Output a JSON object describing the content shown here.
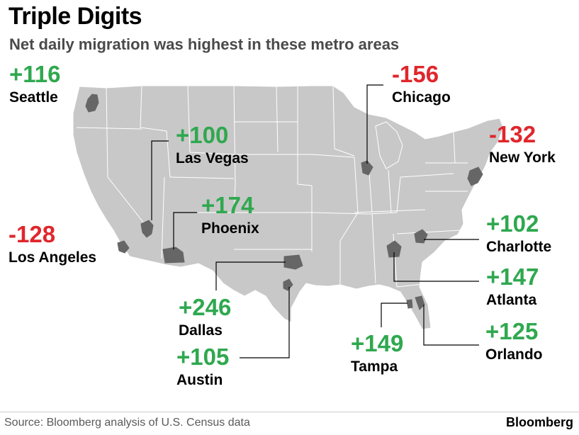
{
  "title": "Triple Digits",
  "subtitle": "Net daily migration was highest in these metro areas",
  "colors": {
    "positive": "#2fa84f",
    "negative": "#e0262c",
    "land": "#c8c8c8",
    "metro": "#666666",
    "border": "#ffffff"
  },
  "metros": [
    {
      "id": "seattle",
      "city": "Seattle",
      "value": "+116",
      "sign": "pos"
    },
    {
      "id": "las-vegas",
      "city": "Las Vegas",
      "value": "+100",
      "sign": "pos"
    },
    {
      "id": "phoenix",
      "city": "Phoenix",
      "value": "+174",
      "sign": "pos"
    },
    {
      "id": "los-angeles",
      "city": "Los Angeles",
      "value": "-128",
      "sign": "neg"
    },
    {
      "id": "chicago",
      "city": "Chicago",
      "value": "-156",
      "sign": "neg"
    },
    {
      "id": "new-york",
      "city": "New York",
      "value": "-132",
      "sign": "neg"
    },
    {
      "id": "charlotte",
      "city": "Charlotte",
      "value": "+102",
      "sign": "pos"
    },
    {
      "id": "atlanta",
      "city": "Atlanta",
      "value": "+147",
      "sign": "pos"
    },
    {
      "id": "orlando",
      "city": "Orlando",
      "value": "+125",
      "sign": "pos"
    },
    {
      "id": "dallas",
      "city": "Dallas",
      "value": "+246",
      "sign": "pos"
    },
    {
      "id": "austin",
      "city": "Austin",
      "value": "+105",
      "sign": "pos"
    },
    {
      "id": "tampa",
      "city": "Tampa",
      "value": "+149",
      "sign": "pos"
    }
  ],
  "source": "Source: Bloomberg analysis of U.S. Census data",
  "brand": "Bloomberg"
}
